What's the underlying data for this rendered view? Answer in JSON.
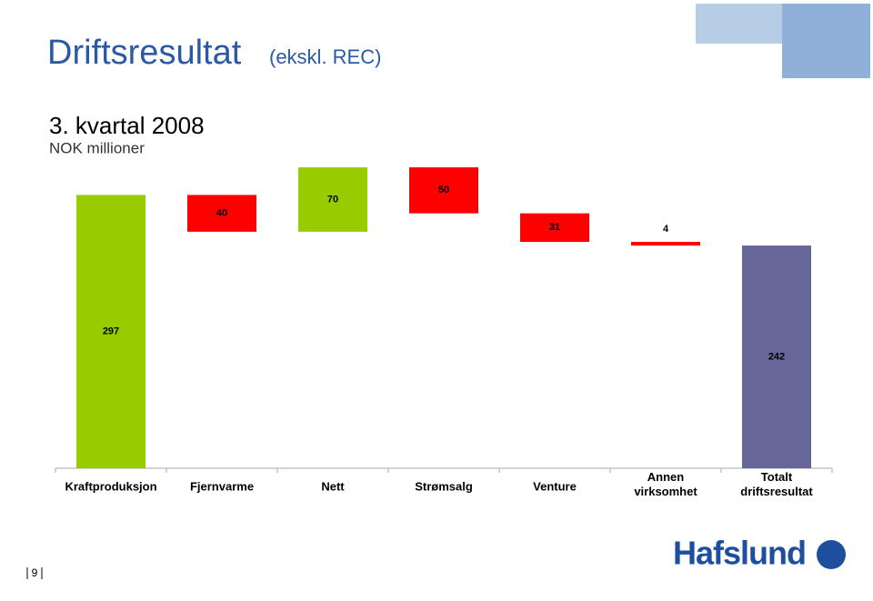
{
  "header": {
    "title": "Driftsresultat",
    "title_note": "(ekskl. REC)"
  },
  "chart_data": {
    "type": "waterfall",
    "title": "3. kvartal 2008",
    "subtitle": "NOK millioner",
    "categories": [
      "Kraftproduksjon",
      "Fjernvarme",
      "Nett",
      "Strømsalg",
      "Venture",
      "Annen virksomhet",
      "Totalt driftsresultat"
    ],
    "values": [
      297,
      -40,
      70,
      -50,
      -31,
      -4,
      242
    ],
    "value_labels": [
      "297",
      "40",
      "70",
      "50",
      "31",
      "4",
      "242"
    ],
    "increase_color": "#99cc00",
    "decrease_color": "#ff0000",
    "total_color": "#666699",
    "ylim": [
      0,
      330
    ]
  },
  "footer": {
    "page_number": "9",
    "logo": "Hafslund"
  }
}
